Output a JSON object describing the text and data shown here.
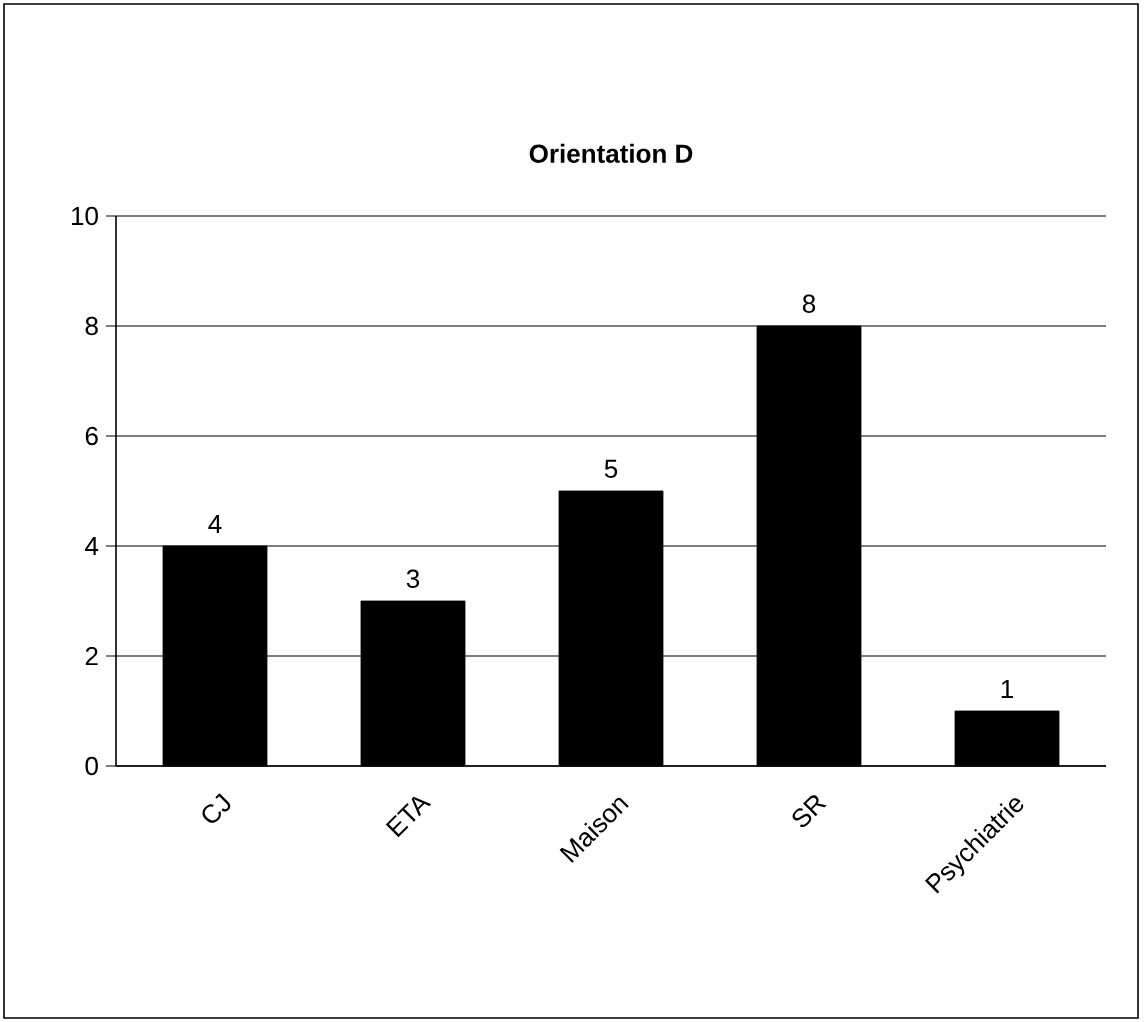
{
  "chart_data": {
    "type": "bar",
    "title": "Orientation D",
    "categories": [
      "CJ",
      "ETA",
      "Maison",
      "SR",
      "Psychiatrie"
    ],
    "values": [
      4,
      3,
      5,
      8,
      1
    ],
    "color": "#000000",
    "ylim": [
      0,
      10
    ],
    "yticks": [
      0,
      2,
      4,
      6,
      8,
      10
    ],
    "grid": "y",
    "data_labels": true
  }
}
